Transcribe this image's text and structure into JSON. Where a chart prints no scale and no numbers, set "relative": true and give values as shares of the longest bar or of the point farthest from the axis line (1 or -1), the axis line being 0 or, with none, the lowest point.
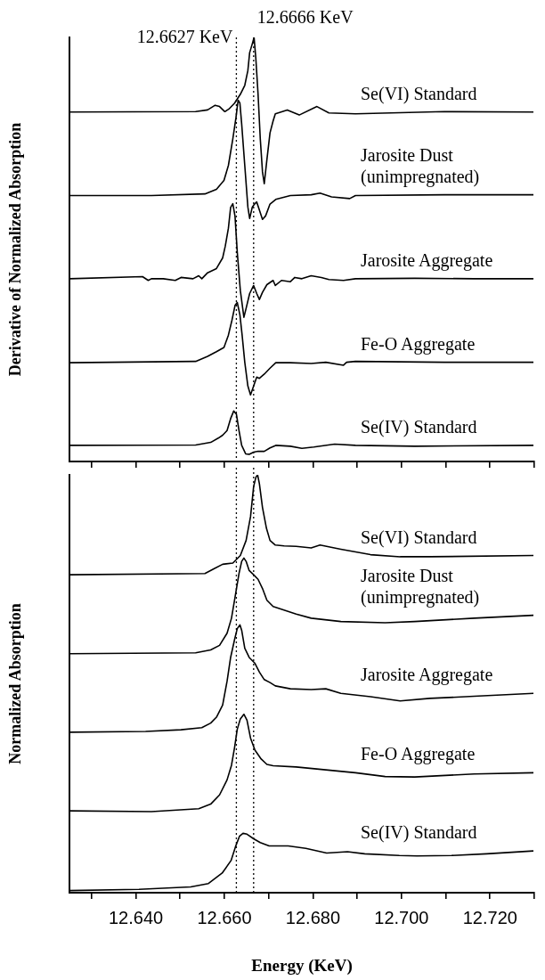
{
  "chart_data": [
    {
      "type": "line",
      "relative": true,
      "ylabel": "Derivative of Normalized Absorption",
      "tick_labels": false,
      "xlim": [
        12.625,
        12.73
      ],
      "xticks": [
        12.63,
        12.64,
        12.65,
        12.66,
        12.67,
        12.68,
        12.69,
        12.7,
        12.71,
        12.72,
        12.73
      ],
      "ref_lines": [
        {
          "axis": "x",
          "value": 12.6627,
          "label": "12.6627 KeV",
          "line_style": "dotted",
          "color": "#000000"
        },
        {
          "axis": "x",
          "value": 12.6666,
          "label": "12.6666 KeV",
          "line_style": "dotted",
          "color": "#000000"
        }
      ],
      "series": [
        {
          "name": "Se(VI) Standard",
          "color": "#000000",
          "x": [
            12.625,
            12.6535,
            12.6562,
            12.6579,
            12.6589,
            12.6601,
            12.661,
            12.6623,
            12.6636,
            12.6646,
            12.6653,
            12.6657,
            12.6663,
            12.6667,
            12.6671,
            12.6676,
            12.6681,
            12.6686,
            12.669,
            12.6696,
            12.6703,
            12.671,
            12.6715,
            12.6742,
            12.6769,
            12.6809,
            12.6836,
            12.6896,
            12.7097,
            12.7298
          ],
          "values": [
            0.824,
            0.825,
            0.829,
            0.84,
            0.837,
            0.825,
            0.831,
            0.845,
            0.866,
            0.887,
            0.922,
            0.964,
            0.985,
            1.0,
            0.95,
            0.866,
            0.761,
            0.683,
            0.655,
            0.712,
            0.775,
            0.803,
            0.82,
            0.829,
            0.817,
            0.837,
            0.822,
            0.82,
            0.825,
            0.824
          ]
        },
        {
          "name": "Jarosite Dust (unimpregnated)",
          "color": "#000000",
          "x": [
            12.625,
            12.6435,
            12.6556,
            12.6582,
            12.6599,
            12.6609,
            12.6619,
            12.6626,
            12.6631,
            12.6635,
            12.6639,
            12.6646,
            12.6653,
            12.6657,
            12.6663,
            12.6668,
            12.6673,
            12.6679,
            12.6686,
            12.6693,
            12.6703,
            12.6716,
            12.6749,
            12.6796,
            12.6816,
            12.6842,
            12.6883,
            12.6896,
            12.7097,
            12.7298
          ],
          "values": [
            0.627,
            0.627,
            0.631,
            0.642,
            0.663,
            0.698,
            0.761,
            0.81,
            0.852,
            0.845,
            0.796,
            0.698,
            0.6,
            0.573,
            0.6,
            0.607,
            0.612,
            0.593,
            0.571,
            0.579,
            0.607,
            0.618,
            0.627,
            0.629,
            0.633,
            0.624,
            0.62,
            0.627,
            0.629,
            0.629
          ]
        },
        {
          "name": "Jarosite Aggregate",
          "color": "#000000",
          "x": [
            12.625,
            12.6415,
            12.6428,
            12.6435,
            12.6462,
            12.6489,
            12.6502,
            12.6529,
            12.6542,
            12.6549,
            12.6562,
            12.6582,
            12.6596,
            12.6602,
            12.6609,
            12.6614,
            12.6619,
            12.6624,
            12.6629,
            12.6636,
            12.6644,
            12.6649,
            12.6657,
            12.6666,
            12.6673,
            12.6679,
            12.6686,
            12.6696,
            12.671,
            12.6715,
            12.6729,
            12.6749,
            12.6759,
            12.6775,
            12.6796,
            12.6819,
            12.6836,
            12.6869,
            12.6896,
            12.703,
            12.7164,
            12.7298
          ],
          "values": [
            0.431,
            0.436,
            0.427,
            0.431,
            0.431,
            0.427,
            0.434,
            0.431,
            0.438,
            0.431,
            0.445,
            0.455,
            0.48,
            0.508,
            0.55,
            0.599,
            0.608,
            0.578,
            0.494,
            0.403,
            0.34,
            0.361,
            0.396,
            0.415,
            0.396,
            0.382,
            0.399,
            0.417,
            0.427,
            0.415,
            0.427,
            0.424,
            0.434,
            0.431,
            0.438,
            0.434,
            0.429,
            0.427,
            0.431,
            0.432,
            0.431,
            0.431
          ]
        },
        {
          "name": "Fe-O Aggregate",
          "color": "#000000",
          "x": [
            12.625,
            12.6535,
            12.6562,
            12.6582,
            12.6599,
            12.6609,
            12.6617,
            12.6624,
            12.6629,
            12.6635,
            12.664,
            12.6646,
            12.6653,
            12.6659,
            12.6666,
            12.6673,
            12.6679,
            12.669,
            12.6703,
            12.6716,
            12.6749,
            12.6796,
            12.6829,
            12.6869,
            12.6876,
            12.6896,
            12.7097,
            12.7298
          ],
          "values": [
            0.233,
            0.236,
            0.248,
            0.259,
            0.269,
            0.298,
            0.333,
            0.368,
            0.375,
            0.346,
            0.298,
            0.234,
            0.178,
            0.157,
            0.178,
            0.199,
            0.196,
            0.206,
            0.22,
            0.233,
            0.233,
            0.231,
            0.234,
            0.227,
            0.234,
            0.236,
            0.234,
            0.234
          ]
        },
        {
          "name": "Se(IV) Standard",
          "color": "#000000",
          "x": [
            12.625,
            12.6535,
            12.6569,
            12.6586,
            12.6596,
            12.6606,
            12.6614,
            12.6621,
            12.6627,
            12.6633,
            12.6639,
            12.6648,
            12.6656,
            12.6666,
            12.6676,
            12.669,
            12.6703,
            12.6716,
            12.6749,
            12.6775,
            12.6802,
            12.6849,
            12.6896,
            12.703,
            12.7298
          ],
          "values": [
            0.038,
            0.039,
            0.045,
            0.055,
            0.062,
            0.073,
            0.101,
            0.119,
            0.112,
            0.073,
            0.038,
            0.018,
            0.017,
            0.022,
            0.024,
            0.024,
            0.032,
            0.038,
            0.036,
            0.031,
            0.034,
            0.041,
            0.038,
            0.036,
            0.038
          ]
        }
      ]
    },
    {
      "type": "line",
      "relative": true,
      "ylabel": "Normalized Absorption",
      "xlabel": "Energy (KeV)",
      "tick_labels": "x",
      "xlim": [
        12.625,
        12.73
      ],
      "xticks": [
        {
          "value": 12.63,
          "label": null
        },
        {
          "value": 12.64,
          "label": "12.640"
        },
        {
          "value": 12.65,
          "label": null
        },
        {
          "value": 12.66,
          "label": "12.660"
        },
        {
          "value": 12.67,
          "label": null
        },
        {
          "value": 12.68,
          "label": "12.680"
        },
        {
          "value": 12.69,
          "label": null
        },
        {
          "value": 12.7,
          "label": "12.700"
        },
        {
          "value": 12.71,
          "label": null
        },
        {
          "value": 12.72,
          "label": "12.720"
        },
        {
          "value": 12.73,
          "label": null
        }
      ],
      "ref_lines": [
        {
          "axis": "x",
          "value": 12.6627,
          "line_style": "dotted",
          "color": "#000000"
        },
        {
          "axis": "x",
          "value": 12.6666,
          "line_style": "dotted",
          "color": "#000000"
        }
      ],
      "series": [
        {
          "name": "Se(VI) Standard",
          "color": "#000000",
          "x": [
            12.625,
            12.6556,
            12.6576,
            12.6596,
            12.6619,
            12.6636,
            12.6649,
            12.6659,
            12.6666,
            12.6671,
            12.6675,
            12.6679,
            12.6686,
            12.6695,
            12.6703,
            12.6715,
            12.6735,
            12.6762,
            12.6796,
            12.6816,
            12.6863,
            12.693,
            12.6997,
            12.7064,
            12.7298
          ],
          "values": [
            0.761,
            0.764,
            0.775,
            0.786,
            0.789,
            0.807,
            0.843,
            0.9,
            0.972,
            0.994,
            1.0,
            0.979,
            0.922,
            0.872,
            0.843,
            0.832,
            0.83,
            0.829,
            0.825,
            0.832,
            0.822,
            0.809,
            0.804,
            0.804,
            0.807
          ]
        },
        {
          "name": "Jarosite Dust (unimpregnated)",
          "color": "#000000",
          "x": [
            12.625,
            12.6535,
            12.6569,
            12.6589,
            12.6606,
            12.6616,
            12.6624,
            12.6633,
            12.6639,
            12.6644,
            12.6649,
            12.6656,
            12.6666,
            12.6676,
            12.6686,
            12.6696,
            12.671,
            12.6762,
            12.6796,
            12.6863,
            12.6963,
            12.703,
            12.7164,
            12.7298
          ],
          "values": [
            0.572,
            0.574,
            0.581,
            0.592,
            0.621,
            0.657,
            0.707,
            0.764,
            0.793,
            0.801,
            0.793,
            0.771,
            0.761,
            0.75,
            0.728,
            0.7,
            0.685,
            0.667,
            0.657,
            0.649,
            0.646,
            0.649,
            0.657,
            0.664
          ]
        },
        {
          "name": "Jarosite Aggregate",
          "color": "#000000",
          "x": [
            12.625,
            12.6422,
            12.6502,
            12.6549,
            12.6569,
            12.6582,
            12.6596,
            12.6606,
            12.6614,
            12.6623,
            12.6629,
            12.6635,
            12.6639,
            12.6646,
            12.6656,
            12.6669,
            12.6679,
            12.669,
            12.6703,
            12.6715,
            12.6749,
            12.6796,
            12.6829,
            12.6863,
            12.693,
            12.6997,
            12.7064,
            12.7164,
            12.7298
          ],
          "values": [
            0.384,
            0.386,
            0.39,
            0.395,
            0.406,
            0.42,
            0.449,
            0.506,
            0.563,
            0.606,
            0.632,
            0.641,
            0.628,
            0.585,
            0.563,
            0.549,
            0.528,
            0.51,
            0.503,
            0.495,
            0.488,
            0.486,
            0.488,
            0.477,
            0.469,
            0.459,
            0.465,
            0.47,
            0.477
          ]
        },
        {
          "name": "Fe-O Aggregate",
          "color": "#000000",
          "x": [
            12.625,
            12.6435,
            12.6542,
            12.6569,
            12.6589,
            12.6606,
            12.6616,
            12.6623,
            12.6629,
            12.6636,
            12.6644,
            12.6651,
            12.6659,
            12.6669,
            12.6683,
            12.6696,
            12.671,
            12.6762,
            12.6829,
            12.6896,
            12.6963,
            12.703,
            12.7164,
            12.7298
          ],
          "values": [
            0.196,
            0.194,
            0.201,
            0.212,
            0.234,
            0.27,
            0.305,
            0.348,
            0.391,
            0.416,
            0.427,
            0.413,
            0.37,
            0.341,
            0.32,
            0.307,
            0.304,
            0.301,
            0.294,
            0.287,
            0.278,
            0.277,
            0.284,
            0.287
          ]
        },
        {
          "name": "Se(IV) Standard",
          "color": "#000000",
          "x": [
            12.625,
            12.6407,
            12.6524,
            12.6564,
            12.6595,
            12.6615,
            12.6625,
            12.6634,
            12.6642,
            12.6651,
            12.6666,
            12.6681,
            12.6701,
            12.6744,
            12.6784,
            12.6831,
            12.6878,
            12.6917,
            12.6995,
            12.7035,
            12.7113,
            12.7192,
            12.7298
          ],
          "values": [
            0.005,
            0.008,
            0.014,
            0.022,
            0.047,
            0.077,
            0.11,
            0.135,
            0.142,
            0.14,
            0.129,
            0.12,
            0.112,
            0.112,
            0.106,
            0.095,
            0.098,
            0.093,
            0.089,
            0.088,
            0.089,
            0.093,
            0.1
          ]
        }
      ]
    }
  ]
}
